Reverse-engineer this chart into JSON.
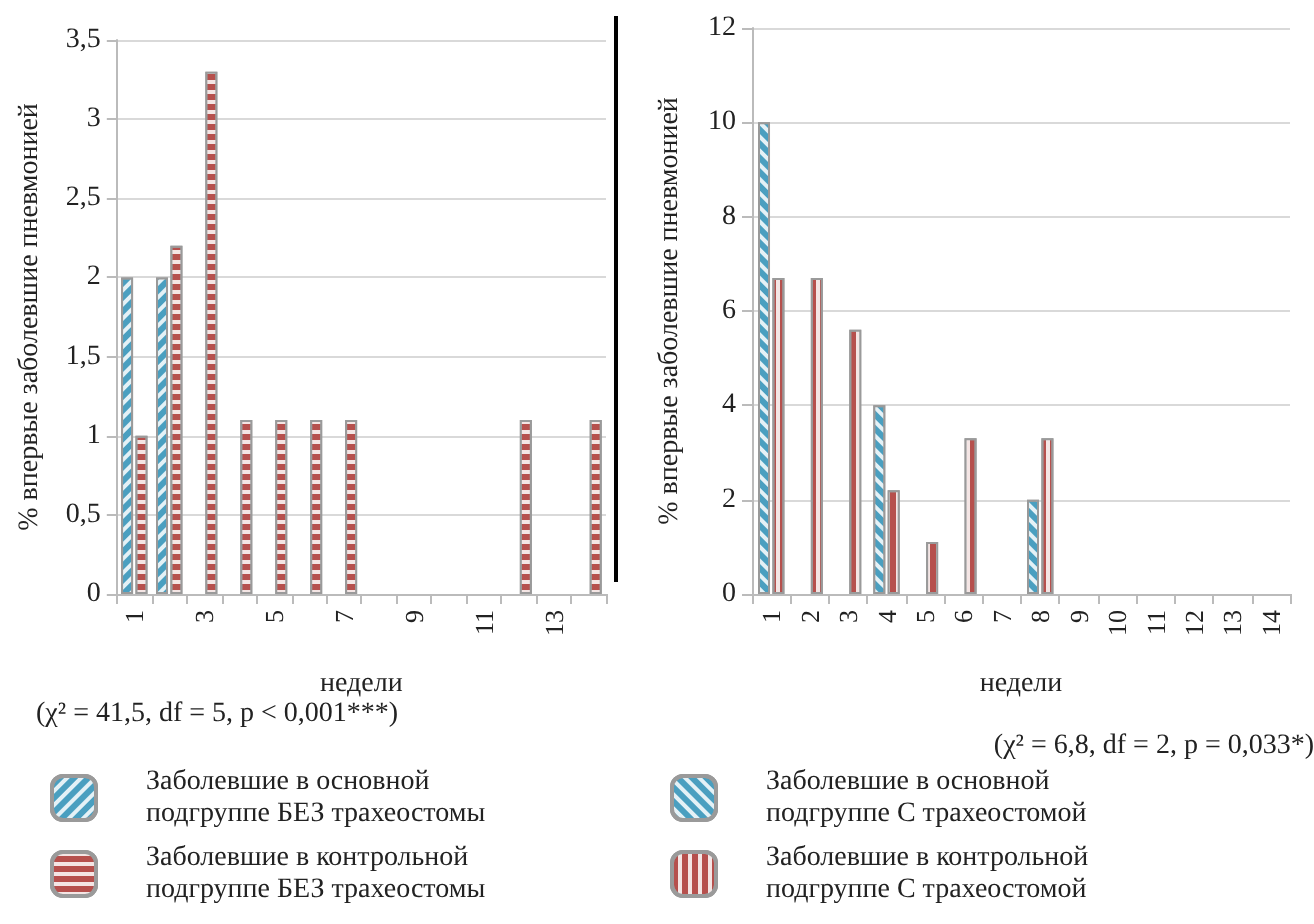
{
  "chart_data": [
    {
      "type": "bar",
      "xlabel": "недели",
      "ylabel": "% впервые заболевшие пневмонией",
      "categories": [
        "1",
        null,
        "3",
        null,
        "5",
        null,
        "7",
        null,
        "9",
        null,
        "11",
        null,
        "13",
        null
      ],
      "series": [
        {
          "name": "Заболевшие в основной подгруппе БЕЗ трахеостомы",
          "color": "#4a9fc0",
          "values": [
            2,
            2,
            null,
            null,
            null,
            null,
            null,
            null,
            null,
            null,
            null,
            null,
            null,
            null
          ]
        },
        {
          "name": "Заболевшие в контрольной подгруппе БЕЗ трахеостомы",
          "color": "#b6504d",
          "values": [
            1,
            2.2,
            3.3,
            1.1,
            1.1,
            1.1,
            1.1,
            null,
            null,
            null,
            null,
            1.1,
            null,
            1.1
          ]
        }
      ],
      "ylim": [
        0,
        3.5
      ],
      "yticks": [
        0,
        {
          "value": 0.5,
          "label": "0,5"
        },
        1,
        {
          "value": 1.5,
          "label": "1,5"
        },
        2,
        {
          "value": 2.5,
          "label": "2,5"
        },
        3,
        {
          "value": 3.5,
          "label": "3,5"
        }
      ],
      "grid": "y",
      "legend": "bottom",
      "annotations": [
        "(χ² = 41,5, df = 5, p < 0,001***)"
      ]
    },
    {
      "type": "bar",
      "xlabel": "недели",
      "ylabel": "% впервые заболевшие пневмонией",
      "categories": [
        "1",
        "2",
        "3",
        "4",
        "5",
        "6",
        "7",
        "8",
        "9",
        "10",
        "11",
        "12",
        "13",
        "14"
      ],
      "series": [
        {
          "name": "Заболевшие в основной подгруппе С трахеостомой",
          "color": "#4a9fc0",
          "values": [
            10,
            null,
            null,
            4,
            null,
            null,
            null,
            2,
            null,
            null,
            null,
            null,
            null,
            null
          ]
        },
        {
          "name": "Заболевшие в контрольной подгруппе С трахеостомой",
          "color": "#b6504d",
          "values": [
            6.7,
            6.7,
            5.6,
            2.2,
            1.1,
            3.3,
            null,
            3.3,
            null,
            null,
            null,
            null,
            null,
            null
          ]
        }
      ],
      "ylim": [
        0,
        12
      ],
      "yticks": [
        0,
        2,
        4,
        6,
        8,
        10,
        12
      ],
      "grid": "y",
      "legend": "bottom",
      "annotations": [
        "(χ² = 6,8, df = 2, p = 0,033*)"
      ]
    }
  ]
}
